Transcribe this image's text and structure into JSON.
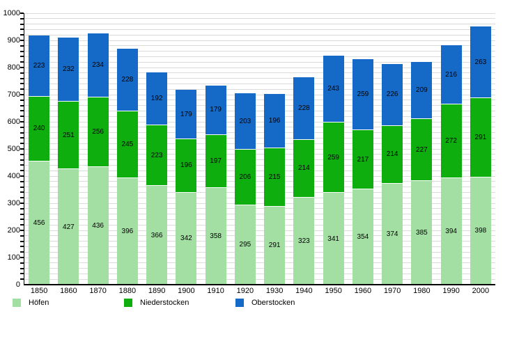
{
  "chart_data": {
    "type": "bar",
    "stacked": true,
    "title": "",
    "xlabel": "",
    "ylabel": "",
    "categories": [
      "1850",
      "1860",
      "1870",
      "1880",
      "1890",
      "1900",
      "1910",
      "1920",
      "1930",
      "1940",
      "1950",
      "1960",
      "1970",
      "1980",
      "1990",
      "2000"
    ],
    "series": [
      {
        "name": "Höfen",
        "color": "#A3DFA3",
        "values": [
          456,
          427,
          436,
          396,
          366,
          342,
          358,
          295,
          291,
          323,
          341,
          354,
          374,
          385,
          394,
          398
        ]
      },
      {
        "name": "Niederstocken",
        "color": "#0DAE0D",
        "values": [
          240,
          251,
          256,
          245,
          223,
          196,
          197,
          206,
          215,
          214,
          259,
          217,
          214,
          227,
          272,
          291
        ]
      },
      {
        "name": "Oberstocken",
        "color": "#1569C7",
        "values": [
          223,
          232,
          234,
          228,
          192,
          179,
          179,
          203,
          196,
          228,
          243,
          259,
          226,
          209,
          216,
          263
        ]
      }
    ],
    "ylim": [
      0,
      1000
    ],
    "y_axis": {
      "major_step": 100,
      "minor_step": 20,
      "tick_labels": [
        "0",
        "100",
        "200",
        "300",
        "400",
        "500",
        "600",
        "700",
        "800",
        "900",
        "1000"
      ]
    },
    "grid": true,
    "gridline_color": "#dbdbdb",
    "axis_color": "#000000",
    "value_labels_shown_inside_segments": true,
    "legend_position": "bottom"
  }
}
